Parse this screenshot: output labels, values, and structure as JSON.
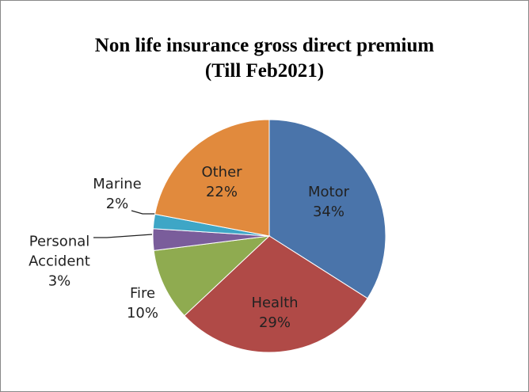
{
  "chart_data": {
    "type": "pie",
    "title": "Non life insurance gross direct premium",
    "subtitle": "(Till Feb2021)",
    "categories": [
      "Motor",
      "Health",
      "Fire",
      "Personal Accident",
      "Marine",
      "Other"
    ],
    "values": [
      34,
      29,
      10,
      3,
      2,
      22
    ],
    "value_labels": [
      "34%",
      "29%",
      "10%",
      "3%",
      "2%",
      "22%"
    ],
    "colors": [
      "#4a74aa",
      "#b04a47",
      "#8fab50",
      "#7a5d9b",
      "#3ea6c6",
      "#e18a3d"
    ]
  }
}
